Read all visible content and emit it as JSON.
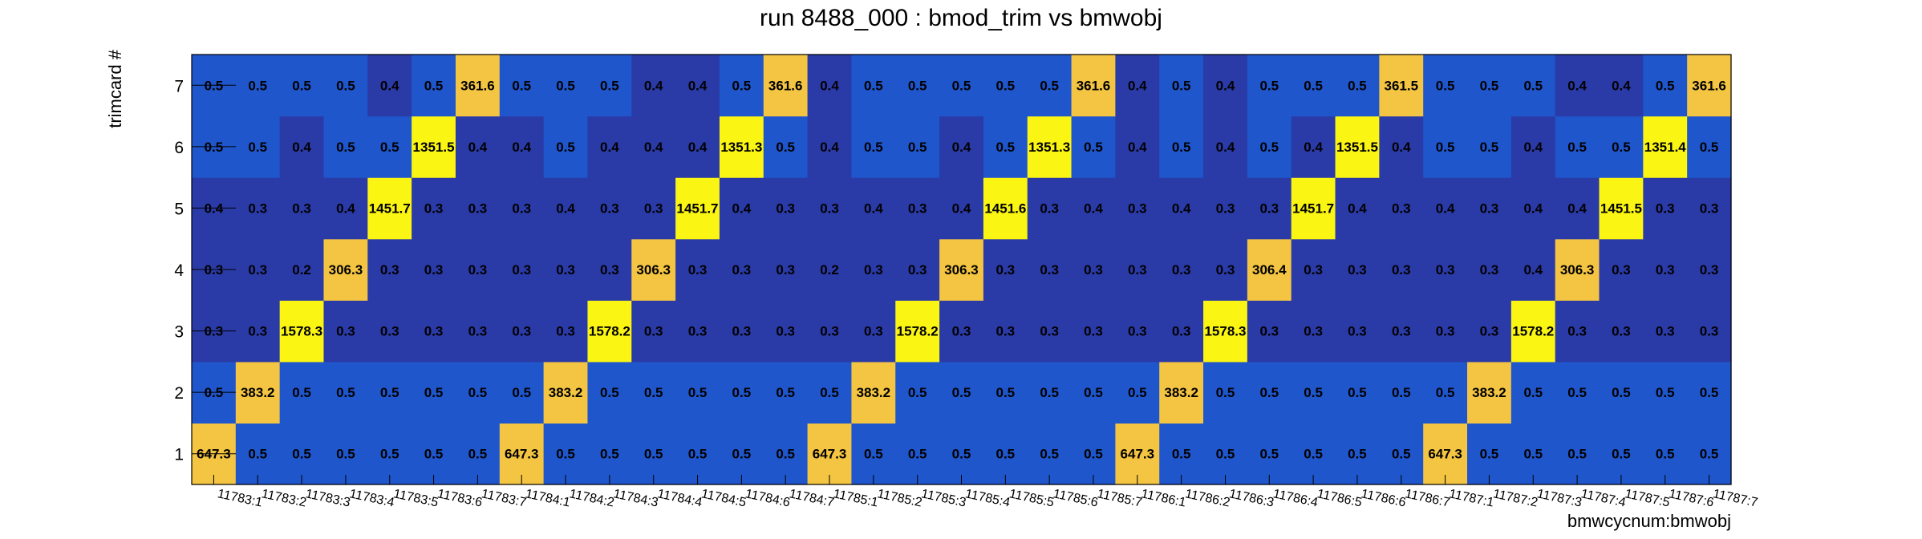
{
  "chart_data": {
    "type": "heatmap",
    "title": "run 8488_000 : bmod_trim vs bmwobj",
    "xlabel": "bmwcycnum:bmwobj",
    "ylabel": "trimcard #",
    "x_categories": [
      "11783:1",
      "11783:2",
      "11783:3",
      "11783:4",
      "11783:5",
      "11783:6",
      "11783:7",
      "11784:1",
      "11784:2",
      "11784:3",
      "11784:4",
      "11784:5",
      "11784:6",
      "11784:7",
      "11785:1",
      "11785:2",
      "11785:3",
      "11785:4",
      "11785:5",
      "11785:6",
      "11785:7",
      "11786:1",
      "11786:2",
      "11786:3",
      "11786:4",
      "11786:5",
      "11786:6",
      "11786:7",
      "11787:1",
      "11787:2",
      "11787:3",
      "11787:4",
      "11787:5",
      "11787:6",
      "11787:7"
    ],
    "y_categories": [
      "1",
      "2",
      "3",
      "4",
      "5",
      "6",
      "7"
    ],
    "colorscale": [
      "#2a3aa6",
      "#1f56cc",
      "#f4c542",
      "#fbf514"
    ],
    "values": [
      [
        "647.3",
        "0.5",
        "0.5",
        "0.5",
        "0.5",
        "0.5",
        "0.5",
        "647.3",
        "0.5",
        "0.5",
        "0.5",
        "0.5",
        "0.5",
        "0.5",
        "647.3",
        "0.5",
        "0.5",
        "0.5",
        "0.5",
        "0.5",
        "0.5",
        "647.3",
        "0.5",
        "0.5",
        "0.5",
        "0.5",
        "0.5",
        "0.5",
        "647.3",
        "0.5",
        "0.5",
        "0.5",
        "0.5",
        "0.5",
        "0.5"
      ],
      [
        "0.5",
        "383.2",
        "0.5",
        "0.5",
        "0.5",
        "0.5",
        "0.5",
        "0.5",
        "383.2",
        "0.5",
        "0.5",
        "0.5",
        "0.5",
        "0.5",
        "0.5",
        "383.2",
        "0.5",
        "0.5",
        "0.5",
        "0.5",
        "0.5",
        "0.5",
        "383.2",
        "0.5",
        "0.5",
        "0.5",
        "0.5",
        "0.5",
        "0.5",
        "383.2",
        "0.5",
        "0.5",
        "0.5",
        "0.5",
        "0.5"
      ],
      [
        "0.3",
        "0.3",
        "1578.3",
        "0.3",
        "0.3",
        "0.3",
        "0.3",
        "0.3",
        "0.3",
        "1578.2",
        "0.3",
        "0.3",
        "0.3",
        "0.3",
        "0.3",
        "0.3",
        "1578.2",
        "0.3",
        "0.3",
        "0.3",
        "0.3",
        "0.3",
        "0.3",
        "1578.3",
        "0.3",
        "0.3",
        "0.3",
        "0.3",
        "0.3",
        "0.3",
        "1578.2",
        "0.3",
        "0.3",
        "0.3",
        "0.3"
      ],
      [
        "0.3",
        "0.3",
        "0.2",
        "306.3",
        "0.3",
        "0.3",
        "0.3",
        "0.3",
        "0.3",
        "0.3",
        "306.3",
        "0.3",
        "0.3",
        "0.3",
        "0.2",
        "0.3",
        "0.3",
        "306.3",
        "0.3",
        "0.3",
        "0.3",
        "0.3",
        "0.3",
        "0.3",
        "306.4",
        "0.3",
        "0.3",
        "0.3",
        "0.3",
        "0.3",
        "0.4",
        "306.3",
        "0.3",
        "0.3",
        "0.3"
      ],
      [
        "0.4",
        "0.3",
        "0.3",
        "0.4",
        "1451.7",
        "0.3",
        "0.3",
        "0.3",
        "0.4",
        "0.3",
        "0.3",
        "1451.7",
        "0.4",
        "0.3",
        "0.3",
        "0.4",
        "0.3",
        "0.4",
        "1451.6",
        "0.3",
        "0.4",
        "0.3",
        "0.4",
        "0.3",
        "0.3",
        "1451.7",
        "0.4",
        "0.3",
        "0.4",
        "0.3",
        "0.4",
        "0.4",
        "1451.5",
        "0.3",
        "0.3"
      ],
      [
        "0.5",
        "0.5",
        "0.4",
        "0.5",
        "0.5",
        "1351.5",
        "0.4",
        "0.4",
        "0.5",
        "0.4",
        "0.4",
        "0.4",
        "1351.3",
        "0.5",
        "0.4",
        "0.5",
        "0.5",
        "0.4",
        "0.5",
        "1351.3",
        "0.5",
        "0.4",
        "0.5",
        "0.4",
        "0.5",
        "0.4",
        "1351.5",
        "0.4",
        "0.5",
        "0.5",
        "0.4",
        "0.5",
        "0.5",
        "1351.4",
        "0.5"
      ],
      [
        "0.5",
        "0.5",
        "0.5",
        "0.5",
        "0.4",
        "0.5",
        "361.6",
        "0.5",
        "0.5",
        "0.5",
        "0.4",
        "0.4",
        "0.5",
        "361.6",
        "0.4",
        "0.5",
        "0.5",
        "0.5",
        "0.5",
        "0.5",
        "361.6",
        "0.4",
        "0.5",
        "0.4",
        "0.5",
        "0.5",
        "0.5",
        "361.5",
        "0.5",
        "0.5",
        "0.5",
        "0.4",
        "0.4",
        "0.5",
        "361.6"
      ]
    ]
  }
}
